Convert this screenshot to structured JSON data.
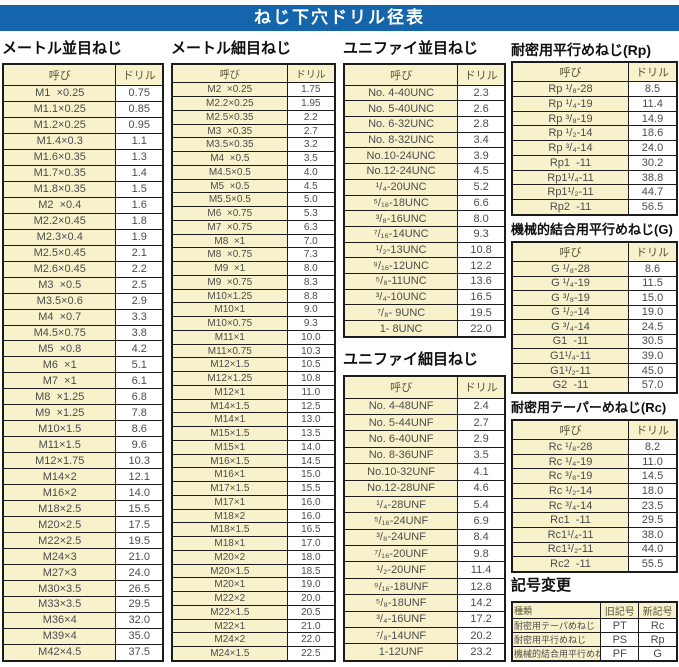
{
  "title": "ねじ下穴ドリル径表",
  "colors": {
    "title_bar_blue": "#1565ad",
    "cell_yellow": "#f8f2cc",
    "cell_white": "#ffffff",
    "border_black": "#1c1c1c"
  },
  "tables": {
    "metric_coarse": {
      "heading": "メートル並目ねじ",
      "col_headers": [
        "呼び",
        "ドリル"
      ],
      "rows": [
        [
          "M1  ×0.25",
          "0.75"
        ],
        [
          "M1.1×0.25",
          "0.85"
        ],
        [
          "M1.2×0.25",
          "0.95"
        ],
        [
          "M1.4×0.3",
          "1.1"
        ],
        [
          "M1.6×0.35",
          "1.3"
        ],
        [
          "M1.7×0.35",
          "1.4"
        ],
        [
          "M1.8×0.35",
          "1.5"
        ],
        [
          "M2  ×0.4",
          "1.6"
        ],
        [
          "M2.2×0.45",
          "1.8"
        ],
        [
          "M2.3×0.4",
          "1.9"
        ],
        [
          "M2.5×0.45",
          "2.1"
        ],
        [
          "M2.6×0.45",
          "2.2"
        ],
        [
          "M3  ×0.5",
          "2.5"
        ],
        [
          "M3.5×0.6",
          "2.9"
        ],
        [
          "M4  ×0.7",
          "3.3"
        ],
        [
          "M4.5×0.75",
          "3.8"
        ],
        [
          "M5  ×0.8",
          "4.2"
        ],
        [
          "M6  ×1",
          "5.1"
        ],
        [
          "M7  ×1",
          "6.1"
        ],
        [
          "M8  ×1.25",
          "6.8"
        ],
        [
          "M9  ×1.25",
          "7.8"
        ],
        [
          "M10×1.5",
          "8.6"
        ],
        [
          "M11×1.5",
          "9.6"
        ],
        [
          "M12×1.75",
          "10.3"
        ],
        [
          "M14×2",
          "12.1"
        ],
        [
          "M16×2",
          "14.0"
        ],
        [
          "M18×2.5",
          "15.5"
        ],
        [
          "M20×2.5",
          "17.5"
        ],
        [
          "M22×2.5",
          "19.5"
        ],
        [
          "M24×3",
          "21.0"
        ],
        [
          "M27×3",
          "24.0"
        ],
        [
          "M30×3.5",
          "26.5"
        ],
        [
          "M33×3.5",
          "29.5"
        ],
        [
          "M36×4",
          "32.0"
        ],
        [
          "M39×4",
          "35.0"
        ],
        [
          "M42×4.5",
          "37.5"
        ]
      ]
    },
    "metric_fine": {
      "heading": "メートル細目ねじ",
      "col_headers": [
        "呼び",
        "ドリル"
      ],
      "rows": [
        [
          "M2  ×0.25",
          "1.75"
        ],
        [
          "M2.2×0.25",
          "1.95"
        ],
        [
          "M2.5×0.35",
          "2.2"
        ],
        [
          "M3  ×0.35",
          "2.7"
        ],
        [
          "M3.5×0.35",
          "3.2"
        ],
        [
          "M4  ×0.5",
          "3.5"
        ],
        [
          "M4.5×0.5",
          "4.0"
        ],
        [
          "M5  ×0.5",
          "4.5"
        ],
        [
          "M5.5×0.5",
          "5.0"
        ],
        [
          "M6  ×0.75",
          "5.3"
        ],
        [
          "M7  ×0.75",
          "6.3"
        ],
        [
          "M8  ×1",
          "7.0"
        ],
        [
          "M8  ×0.75",
          "7.3"
        ],
        [
          "M9  ×1",
          "8.0"
        ],
        [
          "M9  ×0.75",
          "8.3"
        ],
        [
          "M10×1.25",
          "8.8"
        ],
        [
          "M10×1",
          "9.0"
        ],
        [
          "M10×0.75",
          "9.3"
        ],
        [
          "M11×1",
          "10.0"
        ],
        [
          "M11×0.75",
          "10.3"
        ],
        [
          "M12×1.5",
          "10.5"
        ],
        [
          "M12×1.25",
          "10.8"
        ],
        [
          "M12×1",
          "11.0"
        ],
        [
          "M14×1.5",
          "12.5"
        ],
        [
          "M14×1",
          "13.0"
        ],
        [
          "M15×1.5",
          "13.5"
        ],
        [
          "M15×1",
          "14.0"
        ],
        [
          "M16×1.5",
          "14.5"
        ],
        [
          "M16×1",
          "15.0"
        ],
        [
          "M17×1.5",
          "15.5"
        ],
        [
          "M17×1",
          "16.0"
        ],
        [
          "M18×2",
          "16.0"
        ],
        [
          "M18×1.5",
          "16.5"
        ],
        [
          "M18×1",
          "17.0"
        ],
        [
          "M20×2",
          "18.0"
        ],
        [
          "M20×1.5",
          "18.5"
        ],
        [
          "M20×1",
          "19.0"
        ],
        [
          "M22×2",
          "20.0"
        ],
        [
          "M22×1.5",
          "20.5"
        ],
        [
          "M22×1",
          "21.0"
        ],
        [
          "M24×2",
          "22.0"
        ],
        [
          "M24×1.5",
          "22.5"
        ]
      ]
    },
    "unified_coarse": {
      "heading": "ユニファイ並目ねじ",
      "col_headers": [
        "呼び",
        "ドリル"
      ],
      "rows": [
        [
          "No. 4-40UNC",
          "2.3"
        ],
        [
          "No. 5-40UNC",
          "2.6"
        ],
        [
          "No. 6-32UNC",
          "2.8"
        ],
        [
          "No. 8-32UNC",
          "3.4"
        ],
        [
          "No.10-24UNC",
          "3.9"
        ],
        [
          "No.12-24UNC",
          "4.5"
        ],
        [
          "¹/₄-20UNC",
          "5.2"
        ],
        [
          "⁵/₁₆-18UNC",
          "6.6"
        ],
        [
          "³/₈-16UNC",
          "8.0"
        ],
        [
          "⁷/₁₆-14UNC",
          "9.3"
        ],
        [
          "¹/₂-13UNC",
          "10.8"
        ],
        [
          "⁹/₁₆-12UNC",
          "12.2"
        ],
        [
          "⁵/₈-11UNC",
          "13.6"
        ],
        [
          "³/₄-10UNC",
          "16.5"
        ],
        [
          "⁷/₈- 9UNC",
          "19.5"
        ],
        [
          "1- 8UNC",
          "22.0"
        ]
      ]
    },
    "unified_fine": {
      "heading": "ユニファイ細目ねじ",
      "col_headers": [
        "呼び",
        "ドリル"
      ],
      "rows": [
        [
          "No. 4-48UNF",
          "2.4"
        ],
        [
          "No. 5-44UNF",
          "2.7"
        ],
        [
          "No. 6-40UNF",
          "2.9"
        ],
        [
          "No. 8-36UNF",
          "3.5"
        ],
        [
          "No.10-32UNF",
          "4.1"
        ],
        [
          "No.12-28UNF",
          "4.6"
        ],
        [
          "¹/₄-28UNF",
          "5.4"
        ],
        [
          "⁵/₁₆-24UNF",
          "6.9"
        ],
        [
          "³/₈-24UNF",
          "8.4"
        ],
        [
          "⁷/₁₆-20UNF",
          "9.8"
        ],
        [
          "¹/₂-20UNF",
          "11.4"
        ],
        [
          "⁹/₁₆-18UNF",
          "12.8"
        ],
        [
          "⁵/₈-18UNF",
          "14.2"
        ],
        [
          "³/₄-16UNF",
          "17.2"
        ],
        [
          "⁷/₈-14UNF",
          "20.2"
        ],
        [
          "1-12UNF",
          "23.2"
        ]
      ]
    },
    "rp": {
      "heading": "耐密用平行めねじ(Rp)",
      "col_headers": [
        "呼び",
        "ドリル"
      ],
      "rows": [
        [
          "Rp ¹/₈-28",
          "8.5"
        ],
        [
          "Rp ¹/₄-19",
          "11.4"
        ],
        [
          "Rp ³/₈-19",
          "14.9"
        ],
        [
          "Rp ¹/₂-14",
          "18.6"
        ],
        [
          "Rp ³/₄-14",
          "24.0"
        ],
        [
          "Rp1  -11",
          "30.2"
        ],
        [
          "Rp1¹/₄-11",
          "38.8"
        ],
        [
          "Rp1¹/₂-11",
          "44.7"
        ],
        [
          "Rp2  -11",
          "56.5"
        ]
      ]
    },
    "g": {
      "heading": "機械的結合用平行めねじ(G)",
      "col_headers": [
        "呼び",
        "ドリル"
      ],
      "rows": [
        [
          "G ¹/₈-28",
          "8.6"
        ],
        [
          "G ¹/₄-19",
          "11.5"
        ],
        [
          "G ³/₈-19",
          "15.0"
        ],
        [
          "G ¹/₂-14",
          "19.0"
        ],
        [
          "G ³/₄-14",
          "24.5"
        ],
        [
          "G1  -11",
          "30.5"
        ],
        [
          "G1¹/₄-11",
          "39.0"
        ],
        [
          "G1¹/₂-11",
          "45.0"
        ],
        [
          "G2  -11",
          "57.0"
        ]
      ]
    },
    "rc": {
      "heading": "耐密用テーパーめねじ(Rc)",
      "col_headers": [
        "呼び",
        "ドリル"
      ],
      "rows": [
        [
          "Rc ¹/₈-28",
          "8.2"
        ],
        [
          "Rc ¹/₄-19",
          "11.0"
        ],
        [
          "Rc ³/₈-19",
          "14.5"
        ],
        [
          "Rc ¹/₂-14",
          "18.0"
        ],
        [
          "Rc ³/₄-14",
          "23.5"
        ],
        [
          "Rc1  -11",
          "29.5"
        ],
        [
          "Rc1¹/₄-11",
          "38.0"
        ],
        [
          "Rc1¹/₂-11",
          "44.0"
        ],
        [
          "Rc2  -11",
          "55.5"
        ]
      ]
    },
    "symbol_change": {
      "heading": "記号変更",
      "col_headers": [
        "種類",
        "旧記号",
        "新記号"
      ],
      "rows": [
        [
          "耐密用テーパめねじ",
          "PT",
          "Rc"
        ],
        [
          "耐密用平行めねじ",
          "PS",
          "Rp"
        ],
        [
          "機械的結合用平行めねじ",
          "PF",
          "G"
        ]
      ]
    }
  }
}
